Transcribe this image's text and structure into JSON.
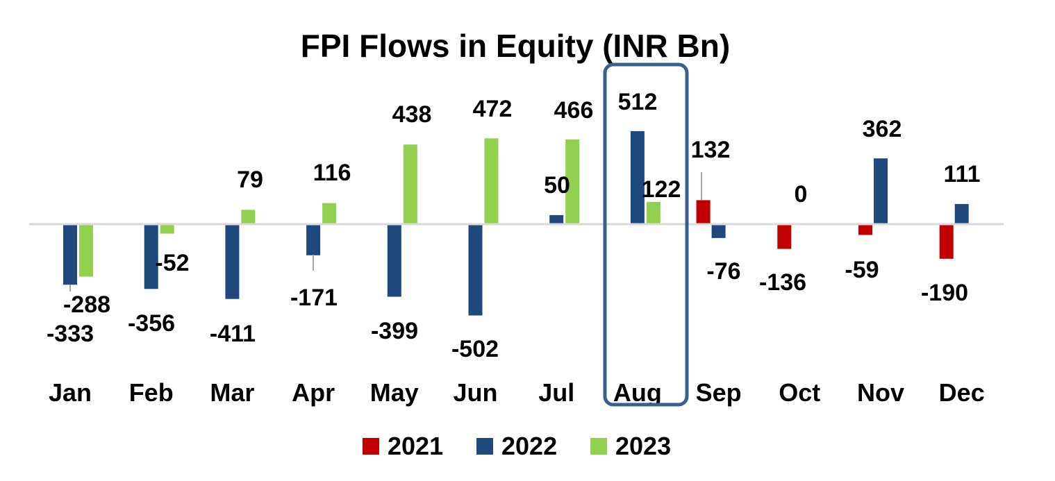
{
  "chart_data": {
    "type": "bar",
    "title": "FPI  Flows in Equity (INR Bn)",
    "xlabel": "",
    "ylabel": "",
    "categories": [
      "Jan",
      "Feb",
      "Mar",
      "Apr",
      "May",
      "Jun",
      "Jul",
      "Aug",
      "Sep",
      "Oct",
      "Nov",
      "Dec"
    ],
    "series": [
      {
        "name": "2021",
        "color": "#c00000",
        "values": [
          null,
          null,
          null,
          null,
          null,
          null,
          null,
          null,
          132,
          -136,
          -59,
          -190
        ]
      },
      {
        "name": "2022",
        "color": "#1f497d",
        "values": [
          -333,
          -356,
          -411,
          -171,
          -399,
          -502,
          50,
          512,
          -76,
          0,
          362,
          111
        ]
      },
      {
        "name": "2023",
        "color": "#92d050",
        "values": [
          -288,
          -52,
          79,
          116,
          438,
          472,
          466,
          122,
          null,
          null,
          null,
          null
        ]
      }
    ],
    "ylim": [
      -600,
      600
    ],
    "grid": false,
    "legend_position": "bottom",
    "highlight": {
      "category": "Aug",
      "color": "#3a5f8f"
    },
    "axis_color": "#d9d9d9"
  }
}
